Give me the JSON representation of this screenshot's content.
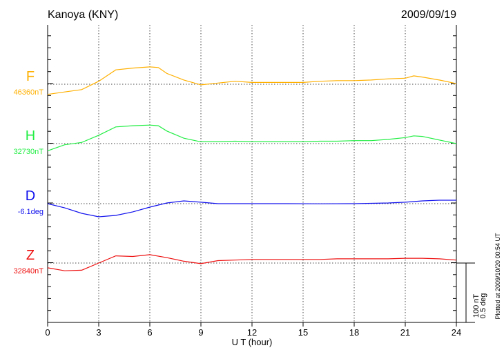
{
  "header": {
    "station": "Kanoya (KNY)",
    "date": "2009/09/19"
  },
  "footer": {
    "plotted": "Plotted at 2009/10/20 00:54 UT"
  },
  "scale": {
    "nt": "100 nT",
    "deg": "0.5 deg"
  },
  "chart_data": {
    "type": "line",
    "xlabel": "U T (hour)",
    "xlim": [
      0,
      24
    ],
    "xticks": [
      "0",
      "3",
      "6",
      "9",
      "12",
      "15",
      "18",
      "21",
      "24"
    ],
    "grid": "dotted at 3-hour intervals and at each baseline",
    "series": [
      {
        "name": "F",
        "baseline_label": "46360nT",
        "baseline": 46360,
        "unit": "nT",
        "scale_per_division": 100,
        "color": "#ffb000",
        "x": [
          0,
          1,
          2,
          3,
          4,
          5,
          6,
          6.5,
          7,
          8,
          9,
          10,
          11,
          12,
          13,
          14,
          15,
          16,
          17,
          18,
          19,
          20,
          21,
          21.5,
          22,
          23,
          24
        ],
        "y": [
          46343,
          46347,
          46351,
          46365,
          46384,
          46387,
          46389,
          46388,
          46378,
          46367,
          46359,
          46362,
          46365,
          46363,
          46363,
          46363,
          46363,
          46365,
          46366,
          46366,
          46367,
          46369,
          46370,
          46374,
          46372,
          46367,
          46361
        ]
      },
      {
        "name": "H",
        "baseline_label": "32730nT",
        "baseline": 32730,
        "unit": "nT",
        "scale_per_division": 100,
        "color": "#22ee44",
        "x": [
          0,
          1,
          2,
          3,
          4,
          5,
          6,
          6.5,
          7,
          8,
          9,
          10,
          11,
          12,
          13,
          14,
          15,
          16,
          17,
          18,
          19,
          20,
          21,
          21.5,
          22,
          23,
          24
        ],
        "y": [
          32718,
          32728,
          32732,
          32744,
          32758,
          32760,
          32761,
          32760,
          32751,
          32739,
          32733,
          32733,
          32734,
          32733,
          32733,
          32733,
          32733,
          32734,
          32734,
          32735,
          32735,
          32737,
          32740,
          32743,
          32742,
          32736,
          32730
        ]
      },
      {
        "name": "D",
        "baseline_label": "-6.1deg",
        "baseline": -6.1,
        "unit": "deg",
        "scale_per_division": 0.5,
        "color": "#1010ee",
        "x": [
          0,
          1,
          2,
          3,
          4,
          5,
          6,
          7,
          8,
          9,
          10,
          12,
          14,
          16,
          18,
          20,
          21,
          22,
          23,
          24
        ],
        "y": [
          -6.1,
          -6.135,
          -6.181,
          -6.21,
          -6.198,
          -6.169,
          -6.129,
          -6.094,
          -6.077,
          -6.088,
          -6.1,
          -6.1,
          -6.1,
          -6.101,
          -6.1,
          -6.094,
          -6.088,
          -6.077,
          -6.071,
          -6.071
        ]
      },
      {
        "name": "Z",
        "baseline_label": "32840nT",
        "baseline": 32840,
        "unit": "nT",
        "scale_per_division": 100,
        "color": "#ee1111",
        "x": [
          0,
          1,
          2,
          3,
          4,
          5,
          6,
          7,
          8,
          9,
          10,
          11,
          12,
          13,
          14,
          15,
          16,
          17,
          18,
          19,
          20,
          21,
          22,
          23,
          24
        ],
        "y": [
          32832,
          32827,
          32828,
          32840,
          32852,
          32851,
          32854,
          32849,
          32843,
          32839,
          32844,
          32845,
          32846,
          32846,
          32846,
          32846,
          32846,
          32847,
          32847,
          32847,
          32847,
          32848,
          32848,
          32847,
          32845
        ]
      }
    ]
  }
}
